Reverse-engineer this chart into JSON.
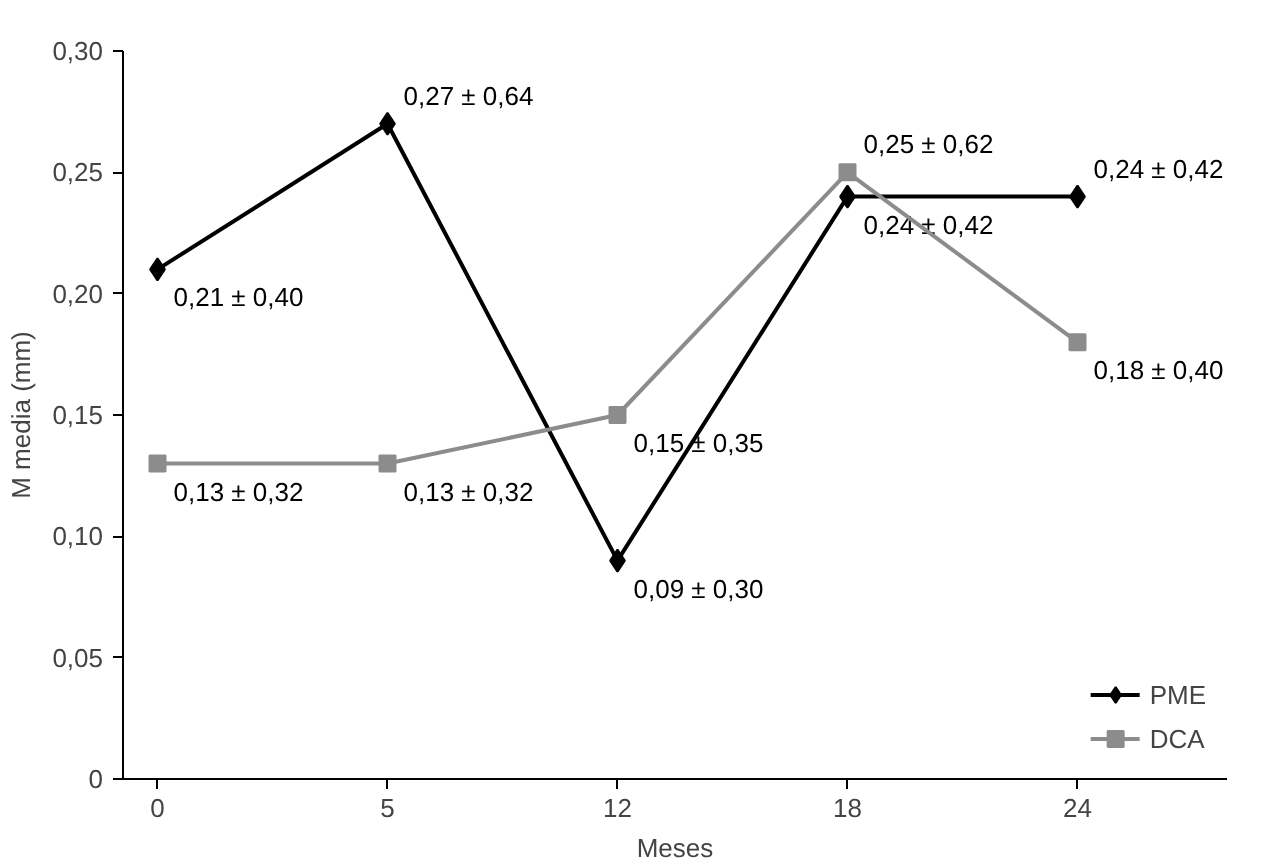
{
  "chart_data": {
    "type": "line",
    "xlabel": "Meses",
    "ylabel": "M media (mm)",
    "categories": [
      "0",
      "5",
      "12",
      "18",
      "24"
    ],
    "ylim": [
      0,
      0.3
    ],
    "yticks": [
      {
        "value": 0,
        "label": "0"
      },
      {
        "value": 0.05,
        "label": "0,05"
      },
      {
        "value": 0.1,
        "label": "0,10"
      },
      {
        "value": 0.15,
        "label": "0,15"
      },
      {
        "value": 0.2,
        "label": "0,20"
      },
      {
        "value": 0.25,
        "label": "0,25"
      },
      {
        "value": 0.3,
        "label": "0,30"
      }
    ],
    "series": [
      {
        "name": "PME",
        "color": "#000000",
        "marker": "diamond",
        "values": [
          0.21,
          0.27,
          0.09,
          0.24,
          0.24
        ],
        "value_labels": [
          "0,21 ± 0,40",
          "0,27 ± 0,64",
          "0,09 ± 0,30",
          "0,24 ± 0,42",
          "0,24 ± 0,42"
        ]
      },
      {
        "name": "DCA",
        "color": "#8c8c8c",
        "marker": "square",
        "values": [
          0.13,
          0.13,
          0.15,
          0.25,
          0.18
        ],
        "value_labels": [
          "0,13 ± 0,32",
          "0,13 ± 0,32",
          "0,15 ± 0,35",
          "0,25 ± 0,62",
          "0,18 ± 0,40"
        ]
      }
    ],
    "legend": "bottom right",
    "grid": false,
    "line_style": "solid"
  }
}
